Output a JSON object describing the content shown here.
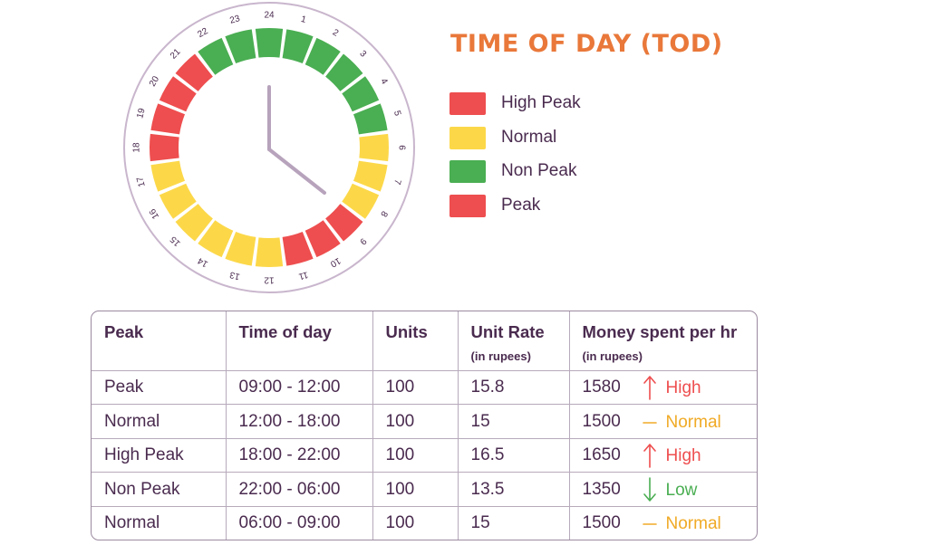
{
  "title": "TIME OF DAY (TOD)",
  "colors": {
    "red": "#ee4e4f",
    "yellow": "#fcd849",
    "green": "#4aae52",
    "hand": "#b7a3bc",
    "ring": "#c9b6cd",
    "title": "#e9783a",
    "trend_up": "#ee4e4f",
    "trend_neutral": "#f0aa26",
    "trend_down": "#4aae52"
  },
  "clock": {
    "hours": [
      "24",
      "1",
      "2",
      "3",
      "4",
      "5",
      "6",
      "7",
      "8",
      "9",
      "10",
      "11",
      "12",
      "13",
      "14",
      "15",
      "16",
      "17",
      "18",
      "19",
      "20",
      "21",
      "22",
      "23"
    ],
    "segments": [
      "green",
      "green",
      "green",
      "green",
      "green",
      "green",
      "yellow",
      "yellow",
      "yellow",
      "red",
      "red",
      "red",
      "yellow",
      "yellow",
      "yellow",
      "yellow",
      "yellow",
      "yellow",
      "red",
      "red",
      "red",
      "red",
      "green",
      "green"
    ]
  },
  "legend": [
    {
      "label": "High Peak",
      "color": "#ee4e4f"
    },
    {
      "label": "Normal",
      "color": "#fcd849"
    },
    {
      "label": "Non Peak",
      "color": "#4aae52"
    },
    {
      "label": "Peak",
      "color": "#ee4e4f"
    }
  ],
  "table": {
    "headers": [
      {
        "main": "Peak",
        "sub": ""
      },
      {
        "main": "Time of day",
        "sub": ""
      },
      {
        "main": "Units",
        "sub": ""
      },
      {
        "main": "Unit Rate",
        "sub": "(in rupees)"
      },
      {
        "main": "Money spent per hr",
        "sub": "(in rupees)"
      }
    ],
    "rows": [
      {
        "peak": "Peak",
        "time": "09:00 - 12:00",
        "units": "100",
        "rate": "15.8",
        "money": "1580",
        "trend": "High",
        "trend_dir": "up"
      },
      {
        "peak": "Normal",
        "time": "12:00 - 18:00",
        "units": "100",
        "rate": "15",
        "money": "1500",
        "trend": "Normal",
        "trend_dir": "neutral"
      },
      {
        "peak": "High Peak",
        "time": "18:00 - 22:00",
        "units": "100",
        "rate": "16.5",
        "money": "1650",
        "trend": "High",
        "trend_dir": "up"
      },
      {
        "peak": "Non Peak",
        "time": "22:00 - 06:00",
        "units": "100",
        "rate": "13.5",
        "money": "1350",
        "trend": "Low",
        "trend_dir": "down"
      },
      {
        "peak": "Normal",
        "time": "06:00 - 09:00",
        "units": "100",
        "rate": "15",
        "money": "1500",
        "trend": "Normal",
        "trend_dir": "neutral"
      }
    ]
  }
}
